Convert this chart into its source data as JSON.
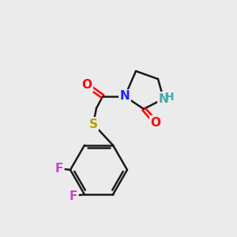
{
  "background_color": "#ebebeb",
  "bond_color": "#1a1a1a",
  "bond_width": 1.8,
  "atom_colors": {
    "N": "#2020ff",
    "O": "#ff0000",
    "S": "#c8b400",
    "F": "#cc44cc",
    "NH": "#44aaaa",
    "C": "#1a1a1a"
  },
  "font_size": 11,
  "figsize": [
    3.0,
    3.0
  ],
  "dpi": 100
}
